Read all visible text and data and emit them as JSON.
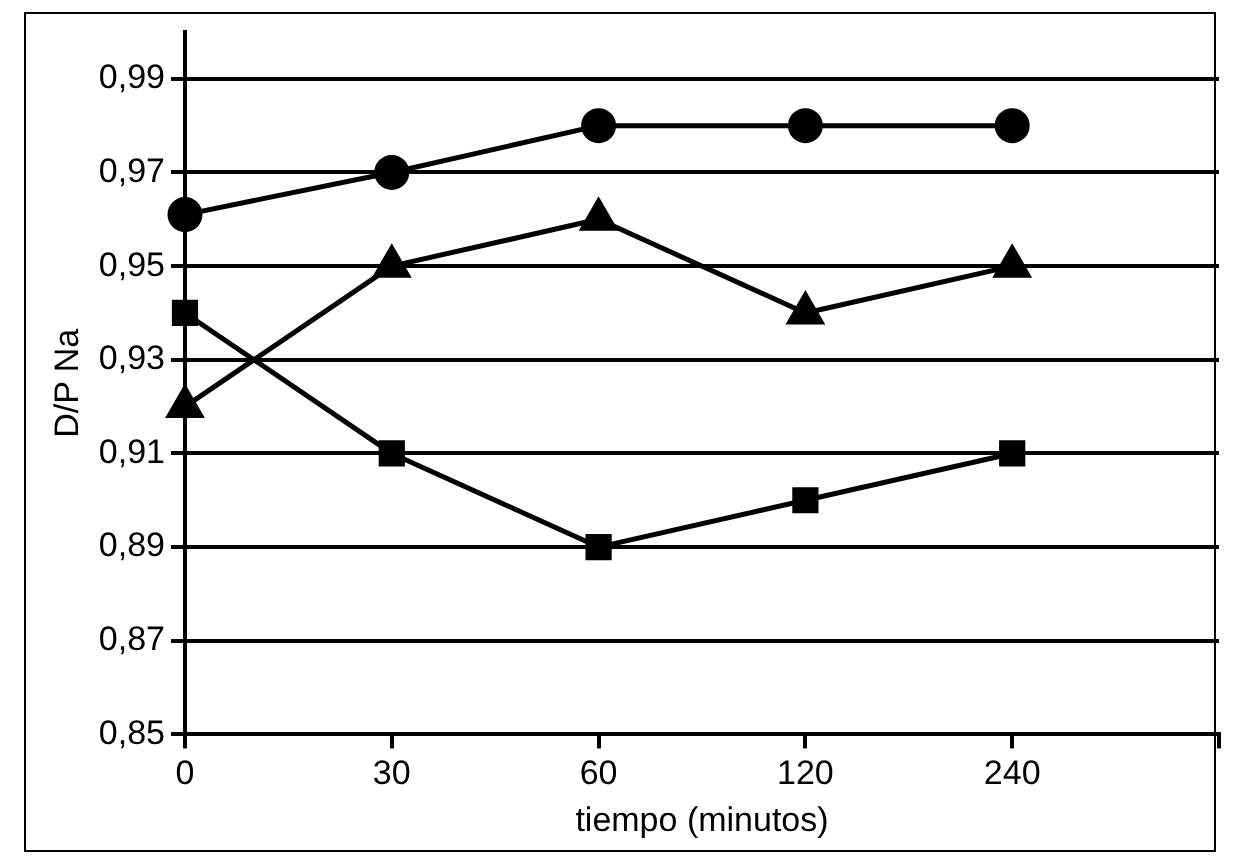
{
  "chart_data": {
    "type": "line",
    "xlabel": "tiempo (minutos)",
    "ylabel": "D/P Na",
    "categories": [
      "0",
      "30",
      "60",
      "120",
      "240",
      null
    ],
    "series": [
      {
        "color": "#000000",
        "marker": "circle",
        "values": [
          0.961,
          0.97,
          0.98,
          0.98,
          0.98,
          null
        ]
      },
      {
        "color": "#000000",
        "marker": "triangle",
        "values": [
          0.92,
          0.95,
          0.96,
          0.94,
          0.95,
          null
        ]
      },
      {
        "color": "#000000",
        "marker": "square",
        "values": [
          0.94,
          0.91,
          0.89,
          0.9,
          0.91,
          null
        ]
      }
    ],
    "ylim": [
      0.85,
      1.0
    ],
    "yticks": [
      {
        "value": 0.85,
        "label": "0,85"
      },
      {
        "value": 0.87,
        "label": "0,87"
      },
      {
        "value": 0.89,
        "label": "0,89"
      },
      {
        "value": 0.91,
        "label": "0,91"
      },
      {
        "value": 0.93,
        "label": "0,93"
      },
      {
        "value": 0.95,
        "label": "0,95"
      },
      {
        "value": 0.97,
        "label": "0,97"
      },
      {
        "value": 0.99,
        "label": "0,99"
      }
    ],
    "grid": "y",
    "legend": false,
    "line_style": "solid"
  }
}
